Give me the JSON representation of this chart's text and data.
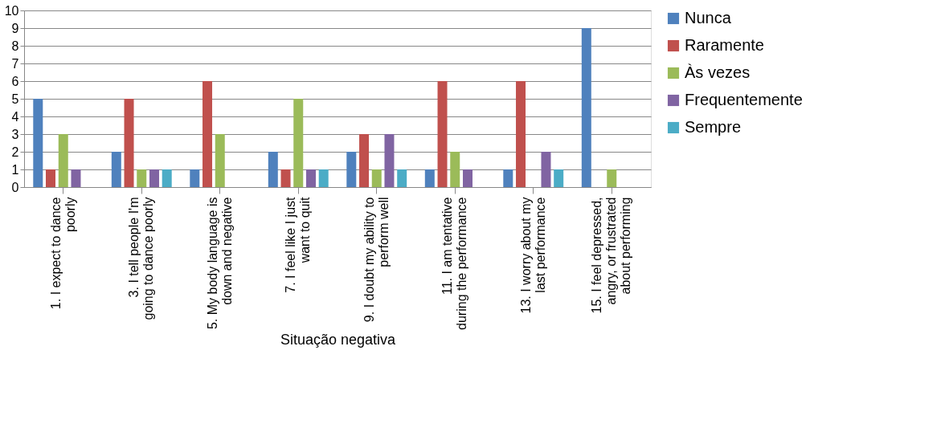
{
  "chart_data": {
    "type": "bar",
    "xlabel": "Situação negativa",
    "categories": [
      "1. I expect to dance poorly",
      "3. I tell people I'm going to dance poorly",
      "5. My body language is down and negative",
      "7. I feel like I just want to quit",
      "9. I doubt my ability to perform well",
      "11. I am tentative during the performance",
      "13. I worry about my last performance",
      "15. I feel depressed, angry, or frustrated about performing"
    ],
    "series": [
      {
        "name": "Nunca",
        "color": "#4f81bd",
        "values": [
          5,
          2,
          1,
          2,
          2,
          1,
          1,
          9
        ]
      },
      {
        "name": "Raramente",
        "color": "#c0504d",
        "values": [
          1,
          5,
          6,
          1,
          3,
          6,
          6,
          0
        ]
      },
      {
        "name": "Às vezes",
        "color": "#9bbb59",
        "values": [
          3,
          1,
          3,
          5,
          1,
          2,
          0,
          1
        ]
      },
      {
        "name": "Frequentemente",
        "color": "#8064a2",
        "values": [
          1,
          1,
          0,
          1,
          3,
          1,
          2,
          0
        ]
      },
      {
        "name": "Sempre",
        "color": "#4bacc6",
        "values": [
          0,
          1,
          0,
          1,
          1,
          0,
          1,
          0
        ]
      }
    ],
    "ylim": [
      0,
      10
    ],
    "yticks": [
      0,
      1,
      2,
      3,
      4,
      5,
      6,
      7,
      8,
      9,
      10
    ],
    "grid": "y",
    "legend": "right"
  }
}
